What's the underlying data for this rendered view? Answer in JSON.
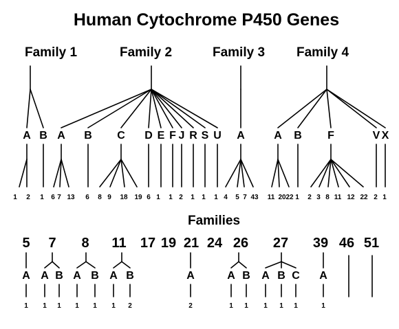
{
  "title": "Human Cytochrome P450 Genes",
  "top_families": [
    {
      "name": "Family 1",
      "subfamilies": [
        {
          "letter": "A",
          "members": [
            "1",
            "2"
          ]
        },
        {
          "letter": "B",
          "members": [
            "1"
          ]
        }
      ]
    },
    {
      "name": "Family 2",
      "subfamilies": [
        {
          "letter": "A",
          "members": [
            "6",
            "7",
            "13"
          ]
        },
        {
          "letter": "B",
          "members": [
            "6"
          ]
        },
        {
          "letter": "C",
          "members": [
            "8",
            "9",
            "18",
            "19"
          ]
        },
        {
          "letter": "D",
          "members": [
            "6"
          ]
        },
        {
          "letter": "E",
          "members": [
            "1"
          ]
        },
        {
          "letter": "F",
          "members": [
            "1"
          ]
        },
        {
          "letter": "J",
          "members": [
            "2"
          ]
        },
        {
          "letter": "R",
          "members": [
            "1"
          ]
        },
        {
          "letter": "S",
          "members": [
            "1"
          ]
        },
        {
          "letter": "U",
          "members": [
            "1"
          ]
        }
      ]
    },
    {
      "name": "Family 3",
      "subfamilies": [
        {
          "letter": "A",
          "members": [
            "4",
            "5",
            "7",
            "43"
          ]
        }
      ]
    },
    {
      "name": "Family 4",
      "subfamilies": [
        {
          "letter": "A",
          "members": [
            "11",
            "20",
            "22"
          ]
        },
        {
          "letter": "B",
          "members": [
            "1"
          ]
        },
        {
          "letter": "F",
          "members": [
            "2",
            "3",
            "8",
            "11",
            "12",
            "22"
          ]
        },
        {
          "letter": "V",
          "members": [
            "2"
          ]
        },
        {
          "letter": "X",
          "members": [
            "1"
          ]
        }
      ]
    }
  ],
  "lower_heading": "Families",
  "lower_families": [
    {
      "number": "5",
      "subfamilies": [
        {
          "letter": "A",
          "members": [
            "1"
          ]
        }
      ]
    },
    {
      "number": "7",
      "subfamilies": [
        {
          "letter": "A",
          "members": [
            "1"
          ]
        },
        {
          "letter": "B",
          "members": [
            "1"
          ]
        }
      ]
    },
    {
      "number": "8",
      "subfamilies": [
        {
          "letter": "A",
          "members": [
            "1"
          ]
        },
        {
          "letter": "B",
          "members": [
            "1"
          ]
        }
      ]
    },
    {
      "number": "11",
      "subfamilies": [
        {
          "letter": "A",
          "members": [
            "1"
          ]
        },
        {
          "letter": "B",
          "members": [
            "2"
          ]
        }
      ]
    },
    {
      "number": "17",
      "subfamilies": []
    },
    {
      "number": "19",
      "subfamilies": []
    },
    {
      "number": "21",
      "subfamilies": [
        {
          "letter": "A",
          "members": [
            "2"
          ]
        }
      ]
    },
    {
      "number": "24",
      "subfamilies": []
    },
    {
      "number": "26",
      "subfamilies": [
        {
          "letter": "A",
          "members": [
            "1"
          ]
        },
        {
          "letter": "B",
          "members": [
            "1"
          ]
        }
      ]
    },
    {
      "number": "27",
      "subfamilies": [
        {
          "letter": "A",
          "members": [
            "1"
          ]
        },
        {
          "letter": "B",
          "members": [
            "1"
          ]
        },
        {
          "letter": "C",
          "members": [
            "1"
          ]
        }
      ]
    },
    {
      "number": "39",
      "subfamilies": [
        {
          "letter": "A",
          "members": [
            "1"
          ]
        }
      ]
    },
    {
      "number": "46",
      "subfamilies": []
    },
    {
      "number": "51",
      "subfamilies": []
    }
  ]
}
